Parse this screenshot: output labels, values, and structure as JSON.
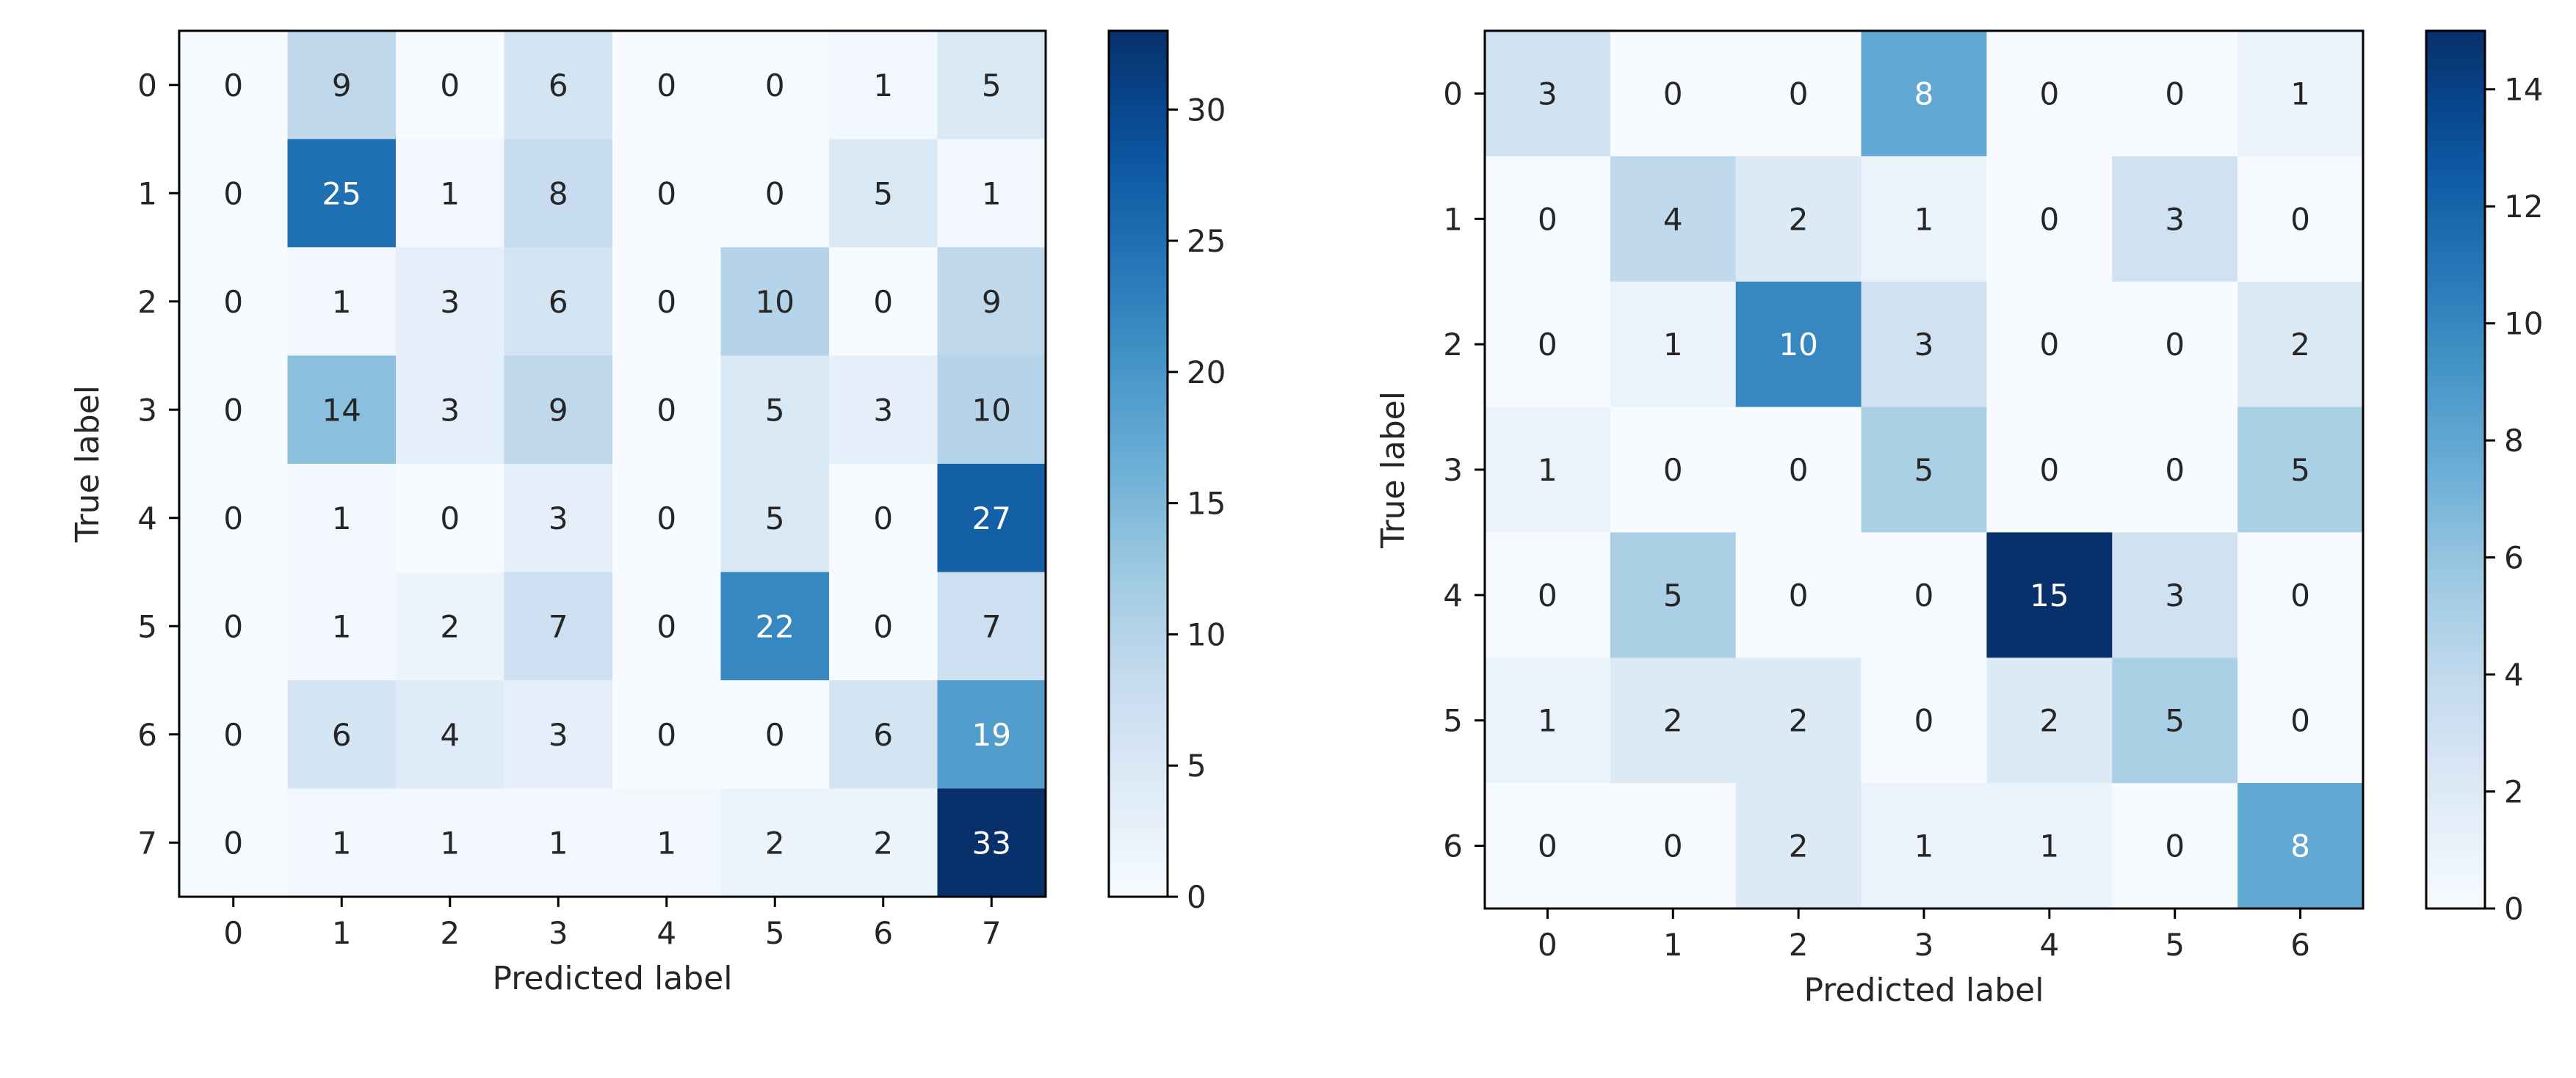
{
  "chart_data": [
    {
      "type": "heatmap",
      "title": "",
      "xlabel": "Predicted label",
      "ylabel": "True label",
      "x_categories": [
        "0",
        "1",
        "2",
        "3",
        "4",
        "5",
        "6",
        "7"
      ],
      "y_categories": [
        "0",
        "1",
        "2",
        "3",
        "4",
        "5",
        "6",
        "7"
      ],
      "values": [
        [
          0,
          9,
          0,
          6,
          0,
          0,
          1,
          5
        ],
        [
          0,
          25,
          1,
          8,
          0,
          0,
          5,
          1
        ],
        [
          0,
          1,
          3,
          6,
          0,
          10,
          0,
          9
        ],
        [
          0,
          14,
          3,
          9,
          0,
          5,
          3,
          10
        ],
        [
          0,
          1,
          0,
          3,
          0,
          5,
          0,
          27
        ],
        [
          0,
          1,
          2,
          7,
          0,
          22,
          0,
          7
        ],
        [
          0,
          6,
          4,
          3,
          0,
          0,
          6,
          19
        ],
        [
          0,
          1,
          1,
          1,
          1,
          2,
          2,
          33
        ]
      ],
      "colormap": "Blues",
      "color_range": [
        0,
        33
      ],
      "colorbar_ticks": [
        "0",
        "5",
        "10",
        "15",
        "20",
        "25",
        "30"
      ],
      "colorbar_tick_values": [
        0,
        5,
        10,
        15,
        20,
        25,
        30
      ]
    },
    {
      "type": "heatmap",
      "title": "",
      "xlabel": "Predicted label",
      "ylabel": "True label",
      "x_categories": [
        "0",
        "1",
        "2",
        "3",
        "4",
        "5",
        "6"
      ],
      "y_categories": [
        "0",
        "1",
        "2",
        "3",
        "4",
        "5",
        "6"
      ],
      "values": [
        [
          3,
          0,
          0,
          8,
          0,
          0,
          1
        ],
        [
          0,
          4,
          2,
          1,
          0,
          3,
          0
        ],
        [
          0,
          1,
          10,
          3,
          0,
          0,
          2
        ],
        [
          1,
          0,
          0,
          5,
          0,
          0,
          5
        ],
        [
          0,
          5,
          0,
          0,
          15,
          3,
          0
        ],
        [
          1,
          2,
          2,
          0,
          2,
          5,
          0
        ],
        [
          0,
          0,
          2,
          1,
          1,
          0,
          8
        ]
      ],
      "colormap": "Blues",
      "color_range": [
        0,
        15
      ],
      "colorbar_ticks": [
        "0",
        "2",
        "4",
        "6",
        "8",
        "10",
        "12",
        "14"
      ],
      "colorbar_tick_values": [
        0,
        2,
        4,
        6,
        8,
        10,
        12,
        14
      ]
    }
  ]
}
